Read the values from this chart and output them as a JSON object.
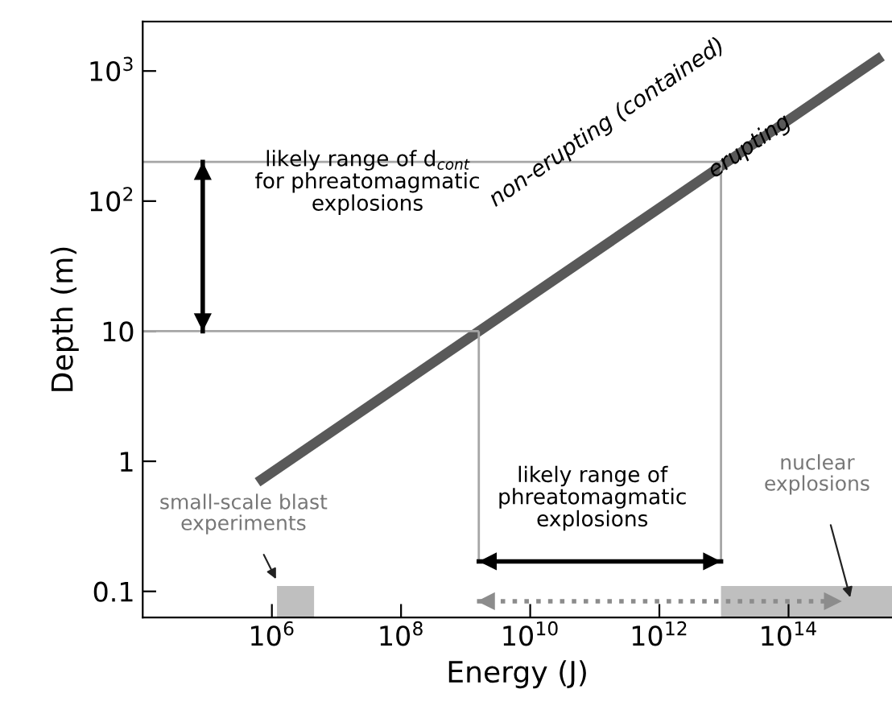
{
  "chart_data": {
    "type": "line",
    "xlabel": "Energy (J)",
    "ylabel": "Depth (m)",
    "log": "xy",
    "xlim": [
      10000,
      4000000000000000.0
    ],
    "ylim": [
      0.063,
      2400
    ],
    "xticks": [
      {
        "value": 1000000.0,
        "label": "10$^{6}$"
      },
      {
        "value": 100000000.0,
        "label": "10$^{8}$"
      },
      {
        "value": 10000000000.0,
        "label": "10$^{10}$"
      },
      {
        "value": 1000000000000.0,
        "label": "10$^{12}$"
      },
      {
        "value": 100000000000000.0,
        "label": "10$^{14}$"
      }
    ],
    "yticks": [
      0.1,
      1,
      10,
      {
        "value": 100,
        "label": "10$^{2}$"
      },
      {
        "value": 1000,
        "label": "10$^{3}$"
      }
    ],
    "grid": false,
    "marker": "none",
    "series": [
      {
        "color": "#595959",
        "x": [
          600000.0,
          2800000000000000.0
        ],
        "values": [
          0.69,
          1300
        ]
      },
      {
        "color": "#a6a6a6",
        "x": [
          10000,
          9000000000000.0
        ],
        "values": [
          200,
          200
        ]
      },
      {
        "color": "#a6a6a6",
        "x": [
          10000,
          1600000000.0
        ],
        "values": [
          10,
          10
        ]
      },
      {
        "color": "#a6a6a6",
        "x": [
          1600000000.0,
          1600000000.0
        ],
        "values": [
          0.17,
          10
        ]
      },
      {
        "color": "#a6a6a6",
        "x": [
          9000000000000.0,
          9000000000000.0
        ],
        "values": [
          0.17,
          200
        ]
      },
      {
        "type": "area",
        "color": "#bfbfbf",
        "x": [
          1200000.0,
          4500000.0
        ],
        "values": [
          0.11,
          0.11
        ]
      },
      {
        "type": "area",
        "color": "#bfbfbf",
        "x": [
          9000000000000.0,
          4000000000000000.0
        ],
        "values": [
          0.11,
          0.11
        ]
      },
      {
        "color": "#000000",
        "x": [
          85000,
          85000
        ],
        "values": [
          10,
          200
        ]
      },
      {
        "color": "#000000",
        "x": [
          1600000000.0,
          9000000000000.0
        ],
        "values": [
          0.17,
          0.17
        ]
      },
      {
        "color": "#8c8c8c",
        "line_style": "dotted",
        "x": [
          1500000000.0,
          670000000000000.0
        ],
        "values": [
          0.084,
          0.084
        ]
      }
    ],
    "annotations": [
      "likely range of d$_{cont}$\nfor phreatomagmatic\nexplosions",
      "non-erupting (contained)",
      "erupting",
      "likely range of\nphreatomagmatic\nexplosions",
      {
        "text": "small-scale blast\nexperiments",
        "x": 1200000.0,
        "y": 0.12
      },
      "nuclear\nexplosions"
    ]
  }
}
